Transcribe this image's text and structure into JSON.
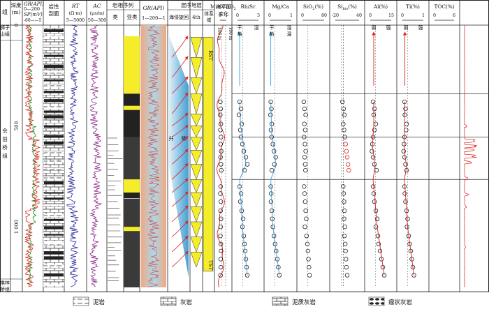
{
  "header": {
    "group": "组",
    "depth": [
      "深度",
      "(m)"
    ],
    "gr": {
      "name": "GR(API)",
      "range": [
        "0",
        "200"
      ]
    },
    "sp": {
      "name": "SP(mV)",
      "range": [
        "-60",
        "5"
      ]
    },
    "lith": [
      "岩性",
      "剖面"
    ],
    "rt": {
      "name": "RT",
      "unit": "(Ω·m)",
      "range": [
        "5",
        "5000"
      ]
    },
    "ac": {
      "name": "AC",
      "unit": "(μs/m)",
      "range": [
        "50",
        "300"
      ]
    },
    "facies": {
      "title": "岩相序列",
      "lei": "类",
      "yalei": "亚类"
    },
    "gr2": {
      "name": "GR(API)",
      "range": [
        "1",
        "200",
        "1"
      ]
    },
    "seq": {
      "title": "层序地层",
      "cycle": "海侵旋回",
      "fourth": "4th",
      "sys": [
        "体系",
        "域"
      ]
    },
    "sea": {
      "title": [
        "海平面",
        "变化"
      ],
      "m100": [
        "100 m",
        "100 m"
      ]
    },
    "geo": [
      {
        "name": "MnO/TiO",
        "sub": "2",
        "range": [
          "0",
          "1"
        ]
      },
      {
        "name": "Rb/Sr",
        "range": [
          "0",
          "3"
        ],
        "notes": [
          "干",
          "湿",
          "热"
        ]
      },
      {
        "name": "Mg/Ca",
        "range": [
          "0",
          "1"
        ],
        "notes": [
          "干",
          "湿",
          "热",
          "温"
        ]
      },
      {
        "name": "SiO",
        "sub": "2",
        "unit": "(%)",
        "range": [
          "0",
          "80"
        ]
      },
      {
        "name": "Si",
        "sub": "bio",
        "unit": "(%)",
        "range": [
          "-20",
          "40"
        ]
      },
      {
        "name": "Al(%)",
        "range": [
          "0",
          "15"
        ],
        "notes": [
          "弱",
          "强"
        ]
      },
      {
        "name": "Ti(%)",
        "range": [
          "0",
          "1"
        ],
        "notes": [
          "弱",
          "强"
        ]
      },
      {
        "name": "TOC(%)",
        "range": [
          "0",
          "6"
        ]
      }
    ]
  },
  "formations": {
    "top": [
      "狮子",
      "山组"
    ],
    "main": [
      "佘",
      "田",
      "桥",
      "组"
    ],
    "bottom": [
      "棋梓",
      "桥组"
    ]
  },
  "depth_ticks": [
    "0",
    "500",
    "1 000"
  ],
  "seq_words": [
    "升",
    "降"
  ],
  "systems_tracts": [
    "RST",
    "TST"
  ],
  "legend": [
    {
      "label": "泥岩",
      "pattern": "mudstone"
    },
    {
      "label": "灰岩",
      "pattern": "limestone"
    },
    {
      "label": "泥质灰岩",
      "pattern": "argillaceous-limestone"
    },
    {
      "label": "瘤状灰岩",
      "pattern": "nodular-limestone"
    }
  ],
  "colors": {
    "gr": "#e0281e",
    "sp": "#1a8a2a",
    "rt": "#2a2a9a",
    "ac": "#8a2a8a",
    "yellow": "#f5ec2a",
    "blue": "#3aa0d8",
    "red": "#e02020"
  },
  "chart_data": {
    "type": "line",
    "y_axis": {
      "label": "深度(m)",
      "ticks": [
        0,
        500,
        1000
      ],
      "range": [
        0,
        1300
      ]
    },
    "horizons_m": [
      340,
      555,
      765
    ],
    "sample_depths_m": [
      380,
      415,
      445,
      490,
      520,
      555,
      590,
      625,
      655,
      690,
      720,
      800,
      835,
      875,
      920,
      960,
      1000,
      1045,
      1085,
      1120,
      1160,
      1200,
      1240
    ],
    "series": [
      {
        "name": "MnO/TiO2",
        "xlim": [
          0,
          1
        ],
        "values": [
          0.05,
          0.1,
          0.03,
          0.12,
          0.06,
          0.15,
          0.1,
          0.18,
          0.08,
          0.14,
          0.2,
          0.1,
          0.05,
          0.12,
          0.08,
          0.14,
          0.1,
          0.06,
          0.12,
          0.16,
          0.1,
          0.13,
          0.08
        ]
      },
      {
        "name": "Rb/Sr",
        "xlim": [
          0,
          3
        ],
        "values": [
          0.3,
          0.5,
          0.2,
          0.6,
          0.4,
          0.5,
          0.7,
          0.9,
          1.2,
          1.4,
          1.0,
          0.3,
          0.5,
          0.4,
          0.6,
          0.8,
          0.7,
          0.9,
          1.0,
          1.1,
          1.2,
          1.3,
          1.4
        ]
      },
      {
        "name": "Mg/Ca",
        "xlim": [
          0,
          1
        ],
        "values": [
          0.05,
          0.08,
          0.04,
          0.1,
          0.06,
          0.09,
          0.15,
          0.2,
          0.28,
          0.22,
          0.1,
          0.05,
          0.07,
          0.06,
          0.1,
          0.12,
          0.15,
          0.2,
          0.25,
          0.3,
          0.35,
          0.4,
          0.45
        ]
      },
      {
        "name": "SiO2(%)",
        "xlim": [
          0,
          80
        ],
        "values": [
          5,
          8,
          12,
          7,
          10,
          6,
          9,
          12,
          8,
          10,
          11,
          6,
          8,
          10,
          12,
          14,
          9,
          15,
          18,
          20,
          22,
          24,
          26
        ]
      },
      {
        "name": "Si_bio(%)",
        "xlim": [
          -20,
          40
        ],
        "values": [
          -2,
          1,
          3,
          0,
          2,
          4,
          6,
          8,
          10,
          12,
          14,
          0,
          1,
          2,
          3,
          2,
          4,
          3,
          5,
          6,
          7,
          8,
          10
        ]
      },
      {
        "name": "Al(%)",
        "xlim": [
          0,
          15
        ],
        "values": [
          2,
          3,
          2.5,
          4,
          3,
          2,
          1.5,
          1.2,
          2,
          3,
          4.5,
          2,
          2.5,
          3,
          4,
          5,
          4,
          5.5,
          6,
          7,
          8,
          9,
          10
        ]
      },
      {
        "name": "Ti(%)",
        "xlim": [
          0,
          1
        ],
        "values": [
          0.1,
          0.15,
          0.12,
          0.2,
          0.18,
          0.1,
          0.08,
          0.06,
          0.1,
          0.15,
          0.2,
          0.1,
          0.12,
          0.15,
          0.2,
          0.25,
          0.22,
          0.3,
          0.35,
          0.4,
          0.45,
          0.5,
          0.55
        ]
      }
    ],
    "fits": {
      "Rb/Sr": [
        [
          380,
          0.3
        ],
        [
          500,
          0.45
        ],
        [
          600,
          0.9
        ],
        [
          690,
          1.2
        ],
        [
          765,
          0.3
        ],
        [
          1000,
          0.7
        ],
        [
          1240,
          1.4
        ]
      ],
      "Mg/Ca": [
        [
          380,
          0.05
        ],
        [
          550,
          0.1
        ],
        [
          640,
          0.25
        ],
        [
          700,
          0.28
        ],
        [
          765,
          0.05
        ],
        [
          1000,
          0.15
        ],
        [
          1240,
          0.45
        ]
      ],
      "Al(%)": [
        [
          380,
          2.5
        ],
        [
          500,
          2.5
        ],
        [
          600,
          1.5
        ],
        [
          700,
          3.5
        ],
        [
          765,
          2
        ],
        [
          1000,
          5
        ],
        [
          1240,
          10
        ]
      ],
      "Ti(%)": [
        [
          380,
          0.12
        ],
        [
          550,
          0.1
        ],
        [
          620,
          0.08
        ],
        [
          700,
          0.2
        ],
        [
          765,
          0.1
        ],
        [
          1000,
          0.25
        ],
        [
          1240,
          0.55
        ]
      ]
    },
    "toc_peaks": [
      [
        500,
        1.0
      ],
      [
        575,
        3.2
      ],
      [
        600,
        4.5
      ],
      [
        620,
        3.0
      ],
      [
        650,
        3.8
      ],
      [
        680,
        2.5
      ],
      [
        760,
        1.2
      ],
      [
        840,
        1.5
      ],
      [
        900,
        0.8
      ],
      [
        1100,
        0.6
      ]
    ]
  }
}
